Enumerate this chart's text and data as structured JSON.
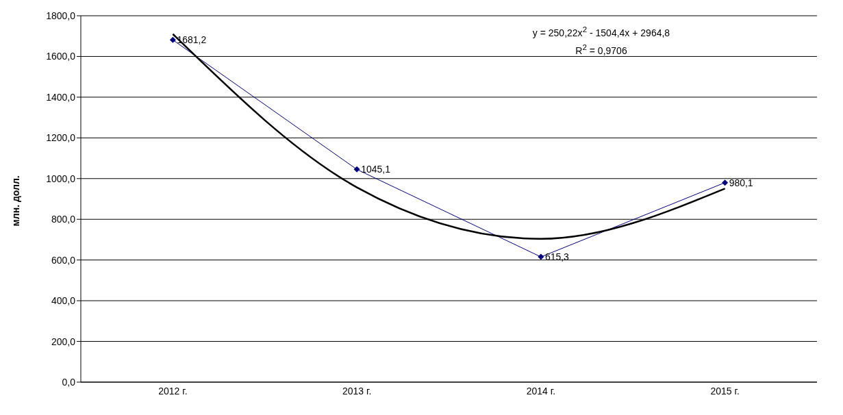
{
  "chart_data": {
    "type": "line",
    "ylabel": "млн. долл.",
    "categories": [
      "2012 г.",
      "2013 г.",
      "2014 г.",
      "2015 г."
    ],
    "series": [
      {
        "color": "#000080",
        "values": [
          1681.2,
          1045.1,
          615.3,
          980.1
        ],
        "value_labels": [
          "1681,2",
          "1045,1",
          "615,3",
          "980,1"
        ],
        "marker": "diamond"
      },
      {
        "type": "line",
        "color": "#000000",
        "values": [
          1710,
          957,
          704,
          951
        ],
        "marker": "none"
      }
    ],
    "ylim": [
      0,
      1800
    ],
    "yticks": [
      {
        "value": 0,
        "label": "0,0"
      },
      {
        "value": 200,
        "label": "200,0"
      },
      {
        "value": 400,
        "label": "400,0"
      },
      {
        "value": 600,
        "label": "600,0"
      },
      {
        "value": 800,
        "label": "800,0"
      },
      {
        "value": 1000,
        "label": "1000,0"
      },
      {
        "value": 1200,
        "label": "1200,0"
      },
      {
        "value": 1400,
        "label": "1400,0"
      },
      {
        "value": 1600,
        "label": "1600,0"
      },
      {
        "value": 1800,
        "label": "1800,0"
      }
    ],
    "grid": "y",
    "annotations": [
      "y = 250,22x$^{2}$ - 1504,4x + 2964,8",
      "R$^{2}$ = 0,9706"
    ]
  }
}
